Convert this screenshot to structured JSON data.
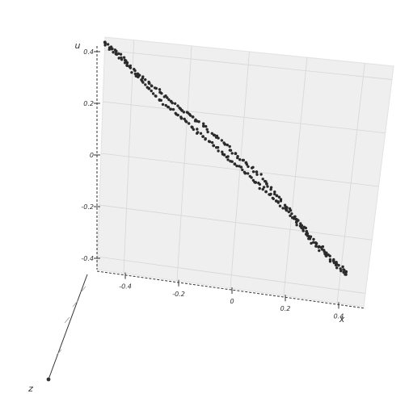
{
  "chart_data": {
    "type": "scatter",
    "projection": "3d",
    "title": "",
    "axes": {
      "x": {
        "label": "x",
        "range": [
          -0.5,
          0.5
        ],
        "ticks": [
          "-0.4",
          "-0.2",
          "0",
          "0.2",
          "0.4"
        ],
        "tick_values": [
          -0.4,
          -0.2,
          0,
          0.2,
          0.4
        ]
      },
      "y": {
        "label": "u",
        "range": [
          -0.45,
          0.45
        ],
        "ticks": [
          "-0.4",
          "-0.2",
          "0",
          "0.2",
          "0.4"
        ],
        "tick_values": [
          -0.4,
          -0.2,
          0,
          0.2,
          0.4
        ]
      },
      "z": {
        "label": "z",
        "ticks": []
      }
    },
    "grid": true,
    "pane_color": "#efefef",
    "marker_color": "#2b2b2b",
    "series": [
      {
        "x": [
          -0.5,
          -0.46,
          -0.42,
          -0.38,
          -0.34,
          -0.3,
          -0.26,
          -0.22,
          -0.18,
          -0.14,
          -0.1,
          -0.06,
          -0.02,
          0.02,
          0.06,
          0.1,
          0.14,
          0.18,
          0.22,
          0.26,
          0.3,
          0.34,
          0.38,
          0.42
        ],
        "y": [
          0.43,
          0.4,
          0.36,
          0.32,
          0.29,
          0.26,
          0.23,
          0.2,
          0.18,
          0.15,
          0.12,
          0.09,
          0.06,
          0.03,
          0.0,
          -0.04,
          -0.08,
          -0.12,
          -0.16,
          -0.2,
          -0.24,
          -0.27,
          -0.3,
          -0.33
        ]
      },
      {
        "x": [
          -0.5,
          -0.46,
          -0.42,
          -0.38,
          -0.34,
          -0.3,
          -0.26,
          -0.22,
          -0.18,
          -0.14,
          -0.1,
          -0.06,
          -0.02,
          0.02,
          0.06,
          0.1,
          0.14,
          0.18,
          0.22,
          0.26,
          0.3,
          0.34,
          0.38,
          0.42
        ],
        "y": [
          0.43,
          0.39,
          0.35,
          0.31,
          0.27,
          0.23,
          0.2,
          0.17,
          0.14,
          0.11,
          0.08,
          0.05,
          0.02,
          -0.01,
          -0.04,
          -0.07,
          -0.1,
          -0.13,
          -0.17,
          -0.21,
          -0.25,
          -0.28,
          -0.31,
          -0.34
        ]
      }
    ]
  }
}
